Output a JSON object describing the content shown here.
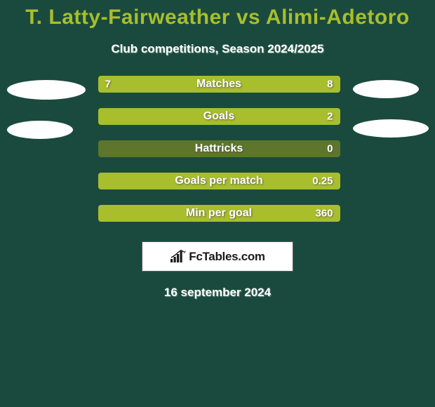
{
  "colors": {
    "background": "#1a4a3e",
    "title": "#a8be2c",
    "subtitle": "#ffffff",
    "bar_track": "#5d762c",
    "bar_fill": "#a8be2c",
    "ellipse": "#ffffff",
    "date": "#ffffff"
  },
  "title": "T. Latty-Fairweather vs Alimi-Adetoro",
  "subtitle": "Club competitions, Season 2024/2025",
  "left_ellipses": [
    {
      "width": 112,
      "height": 28
    },
    {
      "width": 94,
      "height": 26
    }
  ],
  "right_ellipses": [
    {
      "width": 94,
      "height": 26
    },
    {
      "width": 108,
      "height": 26
    }
  ],
  "bars": [
    {
      "label": "Matches",
      "left_value": "7",
      "right_value": "8",
      "left_pct": 46.6,
      "right_pct": 53.4,
      "track_visible": false
    },
    {
      "label": "Goals",
      "left_value": "",
      "right_value": "2",
      "left_pct": 0,
      "right_pct": 100,
      "track_visible": false
    },
    {
      "label": "Hattricks",
      "left_value": "",
      "right_value": "0",
      "left_pct": 0,
      "right_pct": 0,
      "track_visible": true
    },
    {
      "label": "Goals per match",
      "left_value": "",
      "right_value": "0.25",
      "left_pct": 0,
      "right_pct": 100,
      "track_visible": false
    },
    {
      "label": "Min per goal",
      "left_value": "",
      "right_value": "360",
      "left_pct": 0,
      "right_pct": 100,
      "track_visible": false
    }
  ],
  "logo_text": "FcTables.com",
  "date": "16 september 2024"
}
